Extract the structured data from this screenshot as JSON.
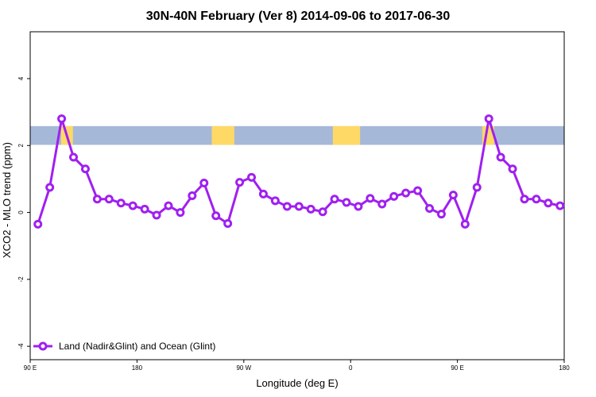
{
  "chart_data": {
    "type": "line",
    "title": "30N-40N February (Ver 8)   2014-09-06 to 2017-06-30",
    "xlabel": "Longitude (deg E)",
    "ylabel": "XCO2 - MLO trend (ppm)",
    "xlim": [
      90,
      540
    ],
    "ylim": [
      -4.4,
      5.4
    ],
    "x_ticks": [
      {
        "value": 90,
        "label": "90 E"
      },
      {
        "value": 180,
        "label": "180"
      },
      {
        "value": 270,
        "label": "90 W"
      },
      {
        "value": 360,
        "label": "0"
      },
      {
        "value": 450,
        "label": "90 E"
      },
      {
        "value": 540,
        "label": "180"
      }
    ],
    "y_ticks": [
      {
        "value": -4,
        "label": "-4"
      },
      {
        "value": -2,
        "label": "-2"
      },
      {
        "value": 0,
        "label": "0"
      },
      {
        "value": 2,
        "label": "2"
      },
      {
        "value": 4,
        "label": "4"
      }
    ],
    "series": [
      {
        "name": "Land (Nadir&Glint) and Ocean (Glint)",
        "color": "#a020f0",
        "x": [
          96.5,
          106.5,
          116.5,
          126.5,
          136.5,
          146.5,
          156.5,
          166.5,
          176.5,
          186.5,
          196.5,
          206.5,
          216.5,
          226.5,
          236.5,
          246.5,
          256.5,
          266.5,
          276.5,
          286.5,
          296.5,
          306.5,
          316.5,
          326.5,
          336.5,
          346.5,
          356.5,
          366.5,
          376.5,
          386.5,
          396.5,
          406.5,
          416.5,
          426.5,
          436.5,
          446.5,
          456.5,
          466.5,
          476.5,
          486.5,
          496.5,
          506.5,
          516.5,
          526.5,
          536.5
        ],
        "y": [
          -0.35,
          0.75,
          2.8,
          1.65,
          1.3,
          0.4,
          0.4,
          0.28,
          0.2,
          0.1,
          -0.08,
          0.2,
          0.0,
          0.5,
          0.88,
          -0.1,
          -0.33,
          0.9,
          1.05,
          0.55,
          0.35,
          0.18,
          0.18,
          0.1,
          0.02,
          0.4,
          0.3,
          0.18,
          0.42,
          0.25,
          0.48,
          0.58,
          0.65,
          0.12,
          -0.05,
          0.52,
          -0.35,
          0.75,
          2.8,
          1.65,
          1.3,
          0.4,
          0.4,
          0.28,
          0.2
        ]
      }
    ],
    "background_band": {
      "y_range": [
        2.02,
        2.58
      ],
      "land_color": "#ffd966",
      "ocean_color": "#a5b8d8",
      "land_longitudes": [
        [
          116,
          126
        ],
        [
          243,
          262
        ],
        [
          345,
          368
        ],
        [
          471,
          481
        ]
      ]
    },
    "legend": {
      "position": "bottom-left"
    },
    "grid": false
  }
}
